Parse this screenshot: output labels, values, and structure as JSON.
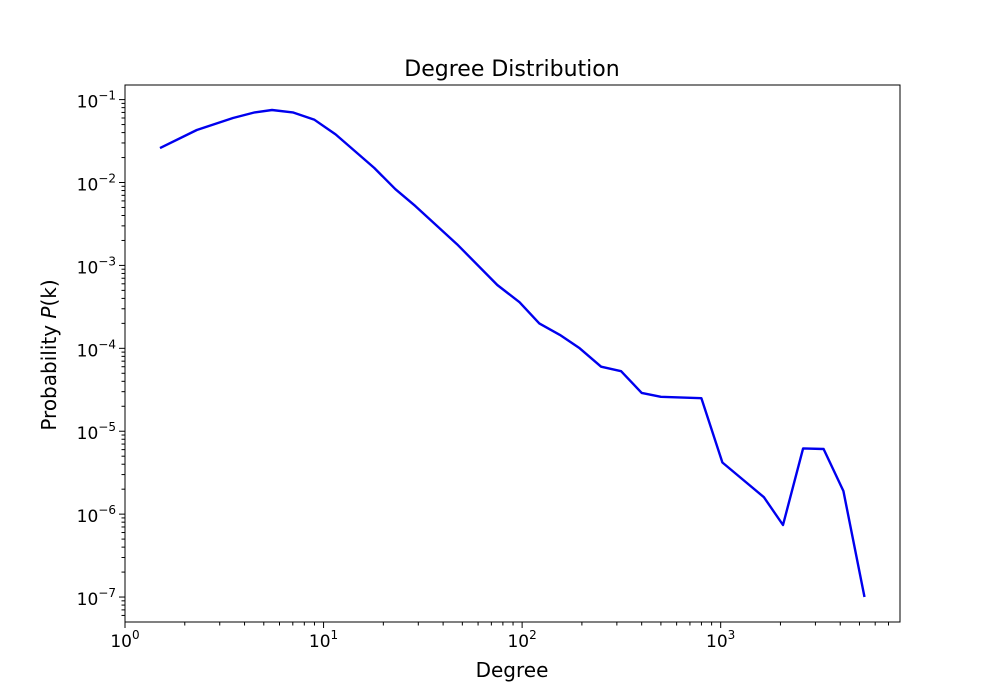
{
  "chart_data": {
    "type": "line",
    "title": "Degree Distribution",
    "xlabel": "Degree",
    "ylabel_prefix": "Probability ",
    "ylabel_var": "P",
    "ylabel_arg": "(k)",
    "x_scale": "log",
    "y_scale": "log",
    "xlim": [
      1,
      8000
    ],
    "ylim": [
      5e-08,
      0.15
    ],
    "x_ticks": [
      {
        "base": "10",
        "exp": "0",
        "value": 1
      },
      {
        "base": "10",
        "exp": "1",
        "value": 10
      },
      {
        "base": "10",
        "exp": "2",
        "value": 100
      },
      {
        "base": "10",
        "exp": "3",
        "value": 1000
      }
    ],
    "y_ticks": [
      {
        "base": "10",
        "exp": "−7",
        "value": 1e-07
      },
      {
        "base": "10",
        "exp": "−6",
        "value": 1e-06
      },
      {
        "base": "10",
        "exp": "−5",
        "value": 1e-05
      },
      {
        "base": "10",
        "exp": "−4",
        "value": 0.0001
      },
      {
        "base": "10",
        "exp": "−3",
        "value": 0.001
      },
      {
        "base": "10",
        "exp": "−2",
        "value": 0.01
      },
      {
        "base": "10",
        "exp": "−1",
        "value": 0.1
      }
    ],
    "grid": false,
    "series": [
      {
        "color": "#0000ee",
        "points": [
          [
            1.5,
            0.026
          ],
          [
            2.3,
            0.043
          ],
          [
            3.5,
            0.06
          ],
          [
            4.5,
            0.07
          ],
          [
            5.5,
            0.075
          ],
          [
            7.0,
            0.07
          ],
          [
            9.0,
            0.057
          ],
          [
            11.5,
            0.038
          ],
          [
            18,
            0.015
          ],
          [
            23,
            0.0083
          ],
          [
            29,
            0.0052
          ],
          [
            47,
            0.0018
          ],
          [
            75,
            0.00058
          ],
          [
            97,
            0.00036
          ],
          [
            122,
            0.0002
          ],
          [
            155,
            0.000145
          ],
          [
            195,
            0.0001
          ],
          [
            250,
            6e-05
          ],
          [
            315,
            5.3e-05
          ],
          [
            400,
            2.9e-05
          ],
          [
            500,
            2.6e-05
          ],
          [
            800,
            2.5e-05
          ],
          [
            1020,
            4.2e-06
          ],
          [
            1650,
            1.6e-06
          ],
          [
            2060,
            7.4e-07
          ],
          [
            2600,
            6.2e-06
          ],
          [
            3300,
            6.1e-06
          ],
          [
            4150,
            1.9e-06
          ],
          [
            5300,
            1e-07
          ]
        ]
      }
    ]
  }
}
